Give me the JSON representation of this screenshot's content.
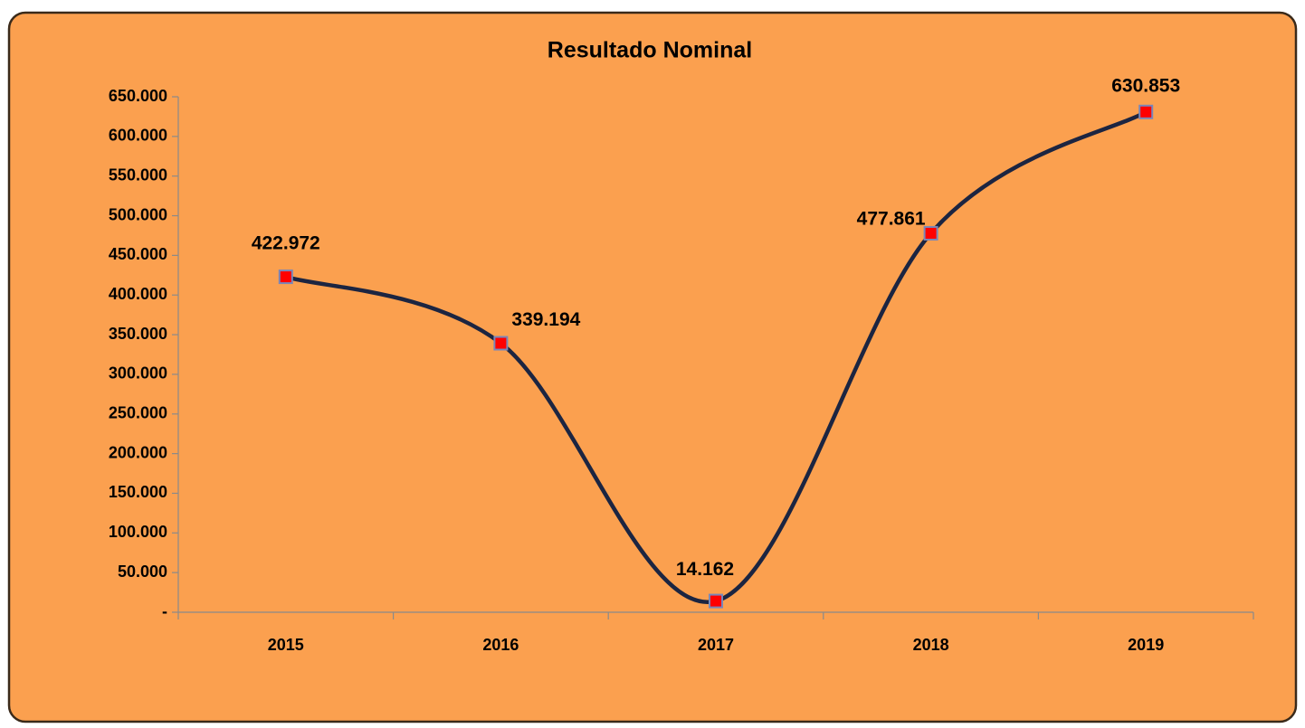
{
  "chart_data": {
    "type": "line",
    "title": "Resultado Nominal",
    "categories": [
      "2015",
      "2016",
      "2017",
      "2018",
      "2019"
    ],
    "series": [
      {
        "name": "Resultado Nominal",
        "color": "#1c2541",
        "marker_color": "#ff0000",
        "values": [
          422972,
          339194,
          14162,
          477861,
          630853
        ],
        "value_labels": [
          "422.972",
          "339.194",
          "14.162",
          "477.861",
          "630.853"
        ]
      }
    ],
    "ylim": [
      0,
      650000
    ],
    "yticks": [
      {
        "value": 0,
        "label": "-"
      },
      {
        "value": 50000,
        "label": "50.000"
      },
      {
        "value": 100000,
        "label": "100.000"
      },
      {
        "value": 150000,
        "label": "150.000"
      },
      {
        "value": 200000,
        "label": "200.000"
      },
      {
        "value": 250000,
        "label": "250.000"
      },
      {
        "value": 300000,
        "label": "300.000"
      },
      {
        "value": 350000,
        "label": "350.000"
      },
      {
        "value": 400000,
        "label": "400.000"
      },
      {
        "value": 450000,
        "label": "450.000"
      },
      {
        "value": 500000,
        "label": "500.000"
      },
      {
        "value": 550000,
        "label": "550.000"
      },
      {
        "value": 600000,
        "label": "600.000"
      },
      {
        "value": 650000,
        "label": "650.000"
      }
    ],
    "grid": false,
    "smooth": true,
    "background": "#fba04f"
  }
}
